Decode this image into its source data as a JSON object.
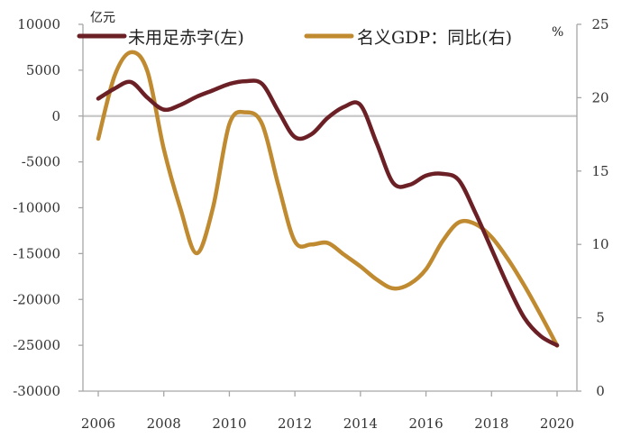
{
  "chart_data": {
    "type": "line",
    "title": "",
    "x": [
      2006,
      2006.5,
      2007,
      2007.5,
      2008,
      2008.5,
      2009,
      2009.5,
      2010,
      2010.5,
      2011,
      2011.5,
      2012,
      2012.5,
      2013,
      2013.5,
      2014,
      2014.5,
      2015,
      2015.5,
      2016,
      2016.5,
      2017,
      2017.5,
      2018,
      2018.5,
      2019,
      2019.5,
      2020
    ],
    "x_ticks": [
      "2006",
      "2008",
      "2010",
      "2012",
      "2014",
      "2016",
      "2018",
      "2020"
    ],
    "x_tick_values": [
      2006,
      2008,
      2010,
      2012,
      2014,
      2016,
      2018,
      2020
    ],
    "xlim": [
      2006,
      2020
    ],
    "ylabel_left": "亿元",
    "ylabel_right": "%",
    "ylim_left": [
      -30000,
      10000
    ],
    "yticks_left": [
      10000,
      5000,
      0,
      -5000,
      -10000,
      -15000,
      -20000,
      -25000,
      -30000
    ],
    "ylim_right": [
      0,
      25
    ],
    "yticks_right": [
      25,
      20,
      15,
      10,
      5,
      0
    ],
    "series": [
      {
        "name": "未用足赤字(左)",
        "axis": "left",
        "color": "#6b2026",
        "values": [
          1900,
          3000,
          3700,
          2000,
          700,
          1200,
          2100,
          2800,
          3500,
          3800,
          3500,
          500,
          -2300,
          -2000,
          -200,
          1000,
          1200,
          -3000,
          -7300,
          -7500,
          -6500,
          -6300,
          -7000,
          -10500,
          -14500,
          -18500,
          -22000,
          -24000,
          -25000
        ]
      },
      {
        "name": "名义GDP：同比(右)",
        "axis": "right",
        "color": "#c08a30",
        "values": [
          17.2,
          21.5,
          23.1,
          21.8,
          16.5,
          12.5,
          9.4,
          12.5,
          18.2,
          19.0,
          18.2,
          14.0,
          10.2,
          10.0,
          10.1,
          9.3,
          8.5,
          7.6,
          7.0,
          7.3,
          8.3,
          10.2,
          11.5,
          11.4,
          10.5,
          9.0,
          7.2,
          5.2,
          3.1
        ]
      }
    ]
  }
}
